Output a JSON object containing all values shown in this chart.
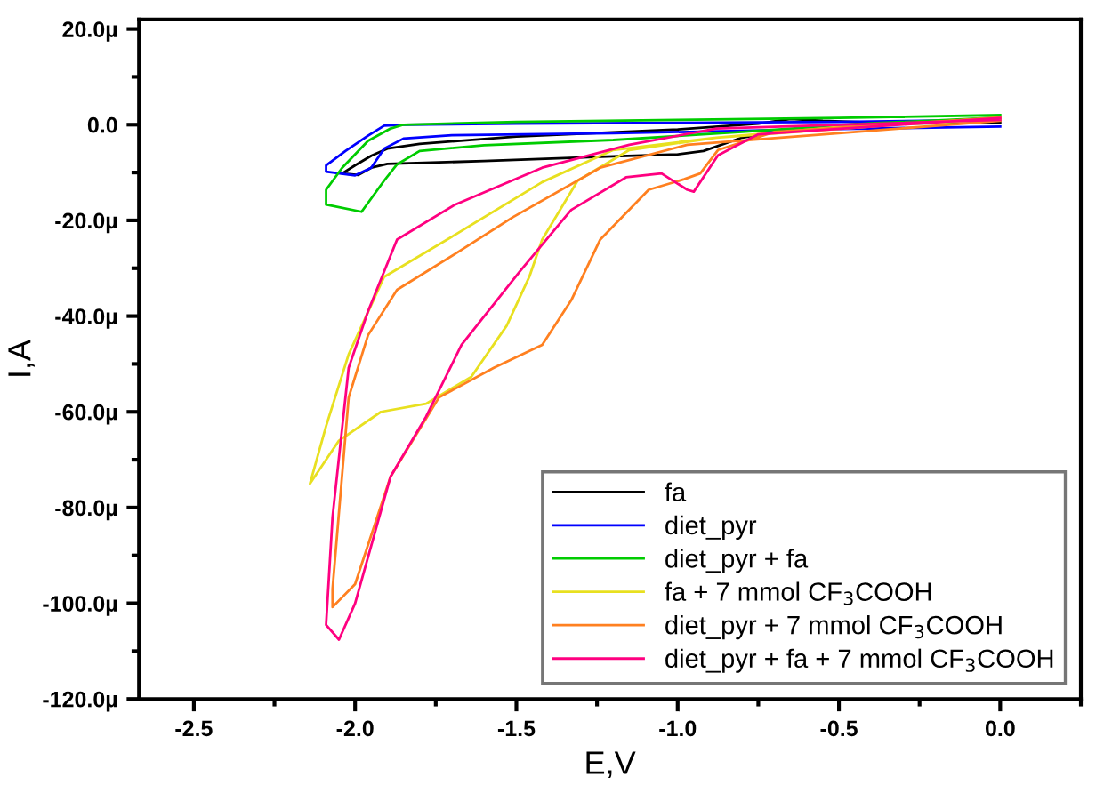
{
  "chart_data": {
    "type": "line",
    "xlabel": "E,V",
    "ylabel": "I,A",
    "xlim": [
      -2.67,
      0.25
    ],
    "ylim": [
      -120,
      22
    ],
    "xticks": [
      -2.5,
      {
        "value": -2.0,
        "label": "-2.0"
      },
      -1.5,
      {
        "value": -1.0,
        "label": "-1.0"
      },
      -0.5,
      {
        "value": 0.0,
        "label": "0.0"
      }
    ],
    "yticks": [
      {
        "value": -120,
        "label": "-120.0µ"
      },
      {
        "value": -100,
        "label": "-100.0µ"
      },
      {
        "value": -80,
        "label": "-80.0µ"
      },
      {
        "value": -60,
        "label": "-60.0µ"
      },
      {
        "value": -40,
        "label": "-40.0µ"
      },
      {
        "value": -20,
        "label": "-20.0µ"
      },
      {
        "value": 0,
        "label": "0.0"
      },
      {
        "value": 20,
        "label": "20.0µ"
      }
    ],
    "grid": false,
    "legend": "bottom right",
    "marker": "none",
    "line_style": "solid",
    "series": [
      {
        "name": "fa",
        "color": "#000000",
        "x": [
          0.0,
          -0.3,
          -0.55,
          -0.65,
          -0.75,
          -1.0,
          -1.5,
          -1.8,
          -1.9,
          -1.95,
          -2.0,
          -2.04,
          -1.99,
          -1.95,
          -1.9,
          -1.6,
          -1.2,
          -1.0,
          -0.92,
          -0.8,
          -0.6,
          -0.3,
          0.0
        ],
        "values": [
          0.5,
          0.2,
          0.8,
          1.2,
          0.2,
          -1.0,
          -2.5,
          -4.0,
          -5.0,
          -6.5,
          -8.5,
          -10.2,
          -10.5,
          -9.0,
          -8.2,
          -7.6,
          -6.6,
          -6.2,
          -5.5,
          -2.7,
          -0.5,
          0.5,
          1.2
        ]
      },
      {
        "name": "diet_pyr",
        "color": "#0000ff",
        "x": [
          0.0,
          -0.5,
          -1.0,
          -1.5,
          -1.85,
          -1.91,
          -1.96,
          -2.03,
          -2.09,
          -2.09,
          -2.0,
          -1.95,
          -1.91,
          -1.85,
          -1.7,
          -1.2,
          -0.6,
          0.0
        ],
        "values": [
          1.0,
          0.6,
          0.4,
          0.2,
          0.0,
          -0.2,
          -2.3,
          -5.5,
          -8.5,
          -9.8,
          -10.6,
          -9.0,
          -5.0,
          -2.9,
          -2.2,
          -1.8,
          -1.0,
          -0.4
        ]
      },
      {
        "name": "diet_pyr + fa",
        "color": "#00cc00",
        "x": [
          0.0,
          -0.5,
          -1.0,
          -1.5,
          -1.85,
          -1.89,
          -1.96,
          -2.04,
          -2.09,
          -2.09,
          -1.98,
          -1.91,
          -1.87,
          -1.8,
          -1.6,
          -1.2,
          -0.8,
          -0.4,
          0.0
        ],
        "values": [
          2.0,
          1.4,
          1.0,
          0.6,
          0.0,
          -0.8,
          -3.4,
          -9.0,
          -13.6,
          -16.7,
          -18.2,
          -11.7,
          -8.3,
          -5.5,
          -4.3,
          -3.2,
          -1.5,
          0.3,
          1.5
        ]
      },
      {
        "name": "fa + 7 mmol CF$_{3}$COOH",
        "color": "#e8e020",
        "x": [
          0.0,
          -0.88,
          -1.2,
          -1.42,
          -1.69,
          -1.91,
          -2.02,
          -2.09,
          -2.14,
          -2.05,
          -1.92,
          -1.78,
          -1.64,
          -1.53,
          -1.46,
          -1.42,
          -1.31,
          -1.15,
          -0.88,
          -0.5,
          0.0
        ],
        "values": [
          1.5,
          -2.7,
          -5.3,
          -12,
          -23,
          -31.8,
          -48,
          -63,
          -75,
          -66,
          -60,
          -58.3,
          -52.7,
          -42,
          -31.8,
          -24,
          -11.7,
          -5.3,
          -2.7,
          -0.5,
          1.0
        ]
      },
      {
        "name": "diet_pyr + 7 mmol CF$_{3}$COOH",
        "color": "#ff8020",
        "x": [
          0.0,
          -0.97,
          -1.24,
          -1.51,
          -1.69,
          -1.87,
          -1.96,
          -2.02,
          -2.07,
          -2.07,
          -2.0,
          -1.89,
          -1.74,
          -1.57,
          -1.42,
          -1.33,
          -1.24,
          -1.09,
          -0.98,
          -0.93,
          -0.875,
          -0.7,
          0.0
        ],
        "values": [
          0.8,
          -4.2,
          -9,
          -19.3,
          -27,
          -34.5,
          -44,
          -57,
          -97,
          -100.8,
          -96,
          -73.5,
          -57,
          -50.8,
          -46,
          -36.7,
          -24,
          -13.6,
          -11.4,
          -10.2,
          -5.3,
          -1.5,
          1.5
        ]
      },
      {
        "name": "diet_pyr + fa + 7 mmol CF$_{3}$COOH",
        "color": "#ff0080",
        "x": [
          0.0,
          -0.88,
          -1.15,
          -1.42,
          -1.69,
          -1.87,
          -1.96,
          -2.02,
          -2.07,
          -2.09,
          -2.05,
          -2.0,
          -1.89,
          -1.78,
          -1.67,
          -1.49,
          -1.33,
          -1.16,
          -1.05,
          -0.97,
          -0.95,
          -0.875,
          -0.75,
          0.0
        ],
        "values": [
          1.0,
          -0.8,
          -4.2,
          -9,
          -16.7,
          -24,
          -39,
          -50.8,
          -82,
          -104.5,
          -107.6,
          -100,
          -73.5,
          -61,
          -46,
          -30.7,
          -17.8,
          -11,
          -10.2,
          -13.6,
          -14,
          -6.4,
          -2.0,
          1.4
        ]
      }
    ]
  }
}
